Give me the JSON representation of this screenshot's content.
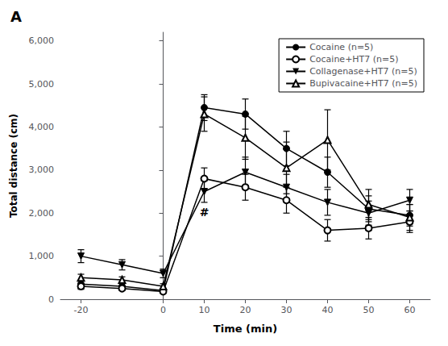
{
  "chart_data": {
    "type": "line",
    "title": "A",
    "xlabel": "Time (min)",
    "ylabel": "Total distance (cm)",
    "x": [
      -20,
      -10,
      0,
      10,
      20,
      30,
      40,
      50,
      60
    ],
    "xlim": [
      -25,
      65
    ],
    "xticks": [
      -20,
      0,
      10,
      20,
      30,
      40,
      50,
      60
    ],
    "ylim": [
      0,
      6200
    ],
    "yticks": [
      0,
      1000,
      2000,
      3000,
      4000,
      5000,
      6000
    ],
    "grid": false,
    "legend": "upper right",
    "series": [
      {
        "name": "Cocaine (n=5)",
        "color": "black",
        "marker": "circle",
        "values": [
          350,
          300,
          200,
          4450,
          4300,
          3500,
          2950,
          2100,
          1950
        ],
        "yerr": [
          80,
          60,
          50,
          300,
          350,
          400,
          350,
          300,
          250
        ]
      },
      {
        "name": "Cocaine+HT7 (n=5)",
        "color": "black",
        "marker": "open_circle",
        "values": [
          300,
          250,
          180,
          2800,
          2600,
          2300,
          1600,
          1650,
          1800
        ],
        "yerr": [
          70,
          50,
          40,
          250,
          300,
          300,
          250,
          250,
          250
        ]
      },
      {
        "name": "Collagenase+HT7 (n=5)",
        "color": "black",
        "marker": "triangle_down",
        "values": [
          1000,
          800,
          600,
          2500,
          2950,
          2600,
          2250,
          2000,
          2300
        ],
        "yerr": [
          150,
          120,
          100,
          250,
          350,
          300,
          300,
          280,
          250
        ]
      },
      {
        "name": "Bupivacaine+HT7 (n=5)",
        "color": "black",
        "marker": "open_triangle_up",
        "values": [
          500,
          450,
          300,
          4300,
          3750,
          3050,
          3700,
          2200,
          1900
        ],
        "yerr": [
          80,
          70,
          60,
          400,
          500,
          600,
          700,
          350,
          300
        ]
      }
    ],
    "annotations": [
      {
        "text": "#",
        "x": 10,
        "y": 1900
      }
    ]
  }
}
